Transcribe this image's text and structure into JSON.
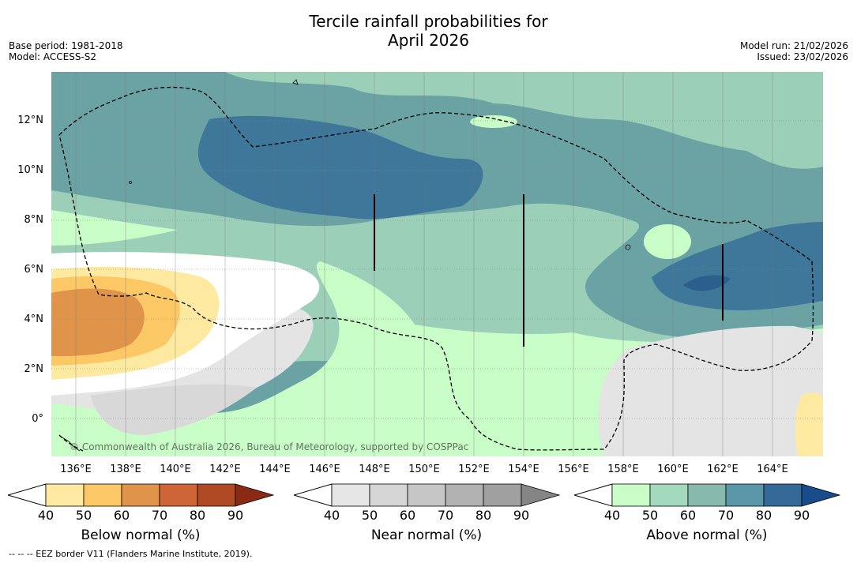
{
  "title_line1": "Tercile rainfall probabilities for",
  "title_line2": "April 2026",
  "meta_left": {
    "base_period": "Base period: 1981-2018",
    "model": "Model: ACCESS-S2"
  },
  "meta_right": {
    "model_run": "Model run: 21/02/2026",
    "issued": "Issued: 23/02/2026"
  },
  "lat_labels": [
    "12°N",
    "10°N",
    "8°N",
    "6°N",
    "4°N",
    "2°N",
    "0°"
  ],
  "lon_labels": [
    "136°E",
    "138°E",
    "140°E",
    "142°E",
    "144°E",
    "146°E",
    "148°E",
    "150°E",
    "152°E",
    "154°E",
    "156°E",
    "158°E",
    "160°E",
    "162°E",
    "164°E"
  ],
  "copyright": "© Commonwealth of Australia 2026, Bureau of Meteorology, supported by COSPPac",
  "colorbars": [
    {
      "title": "Below normal (%)",
      "ticks": [
        "40",
        "50",
        "60",
        "70",
        "80",
        "90"
      ],
      "colors": [
        "#fdeaa0",
        "#fcc866",
        "#e0944a",
        "#cf6437",
        "#b04a25",
        "#8b2a14"
      ]
    },
    {
      "title": "Near normal (%)",
      "ticks": [
        "40",
        "50",
        "60",
        "70",
        "80",
        "90"
      ],
      "colors": [
        "#e6e6e6",
        "#d6d6d6",
        "#c6c6c6",
        "#b2b2b2",
        "#a0a0a0",
        "#858585"
      ]
    },
    {
      "title": "Above normal (%)",
      "ticks": [
        "40",
        "50",
        "60",
        "70",
        "80",
        "90"
      ],
      "colors": [
        "#c9fdc7",
        "#a3d9bc",
        "#88b9ad",
        "#5a97a8",
        "#356a98",
        "#174d8a"
      ]
    }
  ],
  "footnote": "--  --  -- EEZ border V11 (Flanders Marine Institute, 2019)."
}
